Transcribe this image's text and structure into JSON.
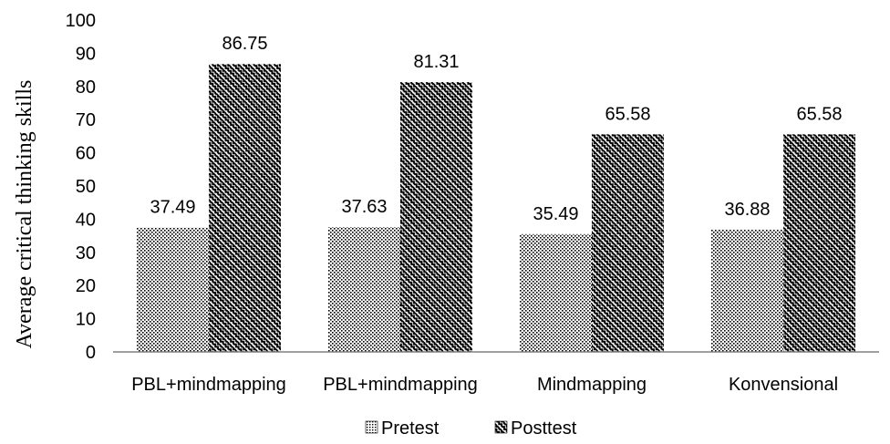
{
  "chart_data": {
    "type": "bar",
    "title": "",
    "xlabel": "",
    "ylabel": "Average  critical thinking skills",
    "ylim": [
      0,
      100
    ],
    "yticks": [
      0,
      10,
      20,
      30,
      40,
      50,
      60,
      70,
      80,
      90,
      100
    ],
    "categories": [
      "PBL+mindmapping",
      "PBL+mindmapping",
      "Mindmapping",
      "Konvensional"
    ],
    "series": [
      {
        "name": "Pretest",
        "values": [
          37.49,
          37.63,
          35.49,
          36.88
        ],
        "data_labels": [
          "37.49",
          "37.63",
          "35.49",
          "36.88"
        ],
        "pattern": "dotted"
      },
      {
        "name": "Posttest",
        "values": [
          86.75,
          81.31,
          65.58,
          65.58
        ],
        "data_labels": [
          "86.75",
          "81.31",
          "65.58",
          "65.58"
        ],
        "pattern": "wavy-diagonal"
      }
    ],
    "grid": false,
    "legend_position": "bottom",
    "colors": {
      "axis": "#808080",
      "ink": "#000000",
      "background": "#ffffff"
    }
  }
}
